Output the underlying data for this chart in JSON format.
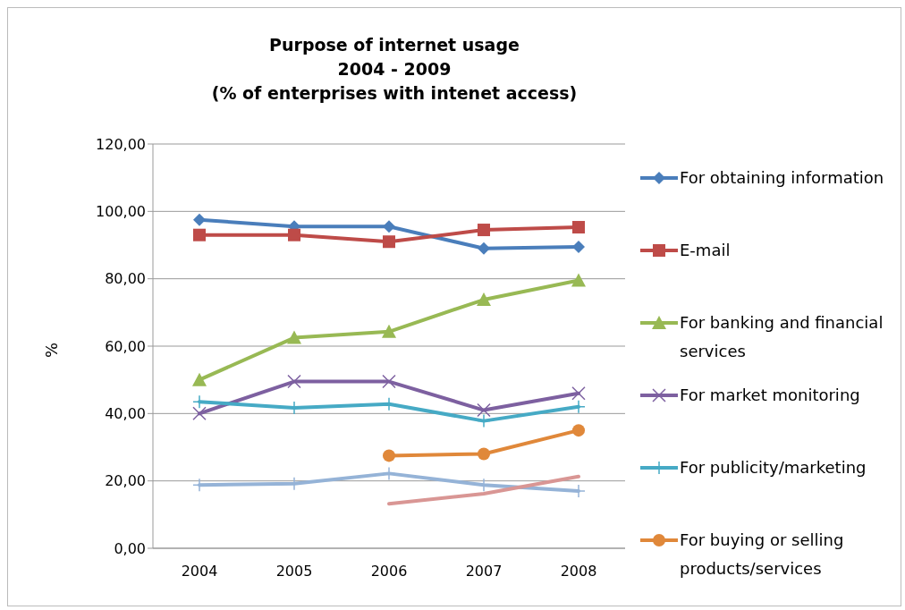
{
  "chart_data": {
    "type": "line",
    "title": "Purpose of internet usage\n2004 - 2009\n(% of enterprises with intenet access)",
    "ylabel": "%",
    "categories": [
      "2004",
      "2005",
      "2006",
      "2007",
      "2008"
    ],
    "series": [
      {
        "name": "For obtaining information",
        "color": "#4a7ebb",
        "marker": "diamond",
        "values": [
          97.5,
          95.5,
          95.5,
          89,
          89.5
        ]
      },
      {
        "name": "E-mail",
        "color": "#be4b48",
        "marker": "square",
        "values": [
          93,
          93,
          91,
          94.5,
          95.3
        ]
      },
      {
        "name": "For banking and financial services",
        "color": "#98b954",
        "marker": "triangle",
        "values": [
          50,
          62.5,
          64.3,
          73.8,
          79.5
        ]
      },
      {
        "name": "For market monitoring",
        "color": "#7d60a0",
        "marker": "cross",
        "values": [
          40,
          49.5,
          49.5,
          41,
          46
        ]
      },
      {
        "name": "For publicity/marketing",
        "color": "#46aac5",
        "marker": "cross",
        "values": [
          43.5,
          41.7,
          42.8,
          37.8,
          42
        ]
      },
      {
        "name": "For buying or selling products/services",
        "color": "#e0883a",
        "marker": "circle",
        "values": [
          null,
          null,
          27.5,
          28,
          35
        ]
      },
      {
        "color": "#95b3d7",
        "marker": "cross",
        "values": [
          18.8,
          19.2,
          22.2,
          18.8,
          17
        ]
      },
      {
        "color": "#d99694",
        "marker": "none",
        "values": [
          null,
          null,
          13.2,
          16.2,
          21.3
        ]
      }
    ],
    "ylim": [
      0,
      120
    ],
    "yticks": [
      {
        "value": 0,
        "label": "0,00"
      },
      {
        "value": 20,
        "label": "20,00"
      },
      {
        "value": 40,
        "label": "40,00"
      },
      {
        "value": 60,
        "label": "60,00"
      },
      {
        "value": 80,
        "label": "80,00"
      },
      {
        "value": 100,
        "label": "100,00"
      },
      {
        "value": 120,
        "label": "120,00"
      }
    ],
    "grid": "y",
    "legend": "right"
  }
}
